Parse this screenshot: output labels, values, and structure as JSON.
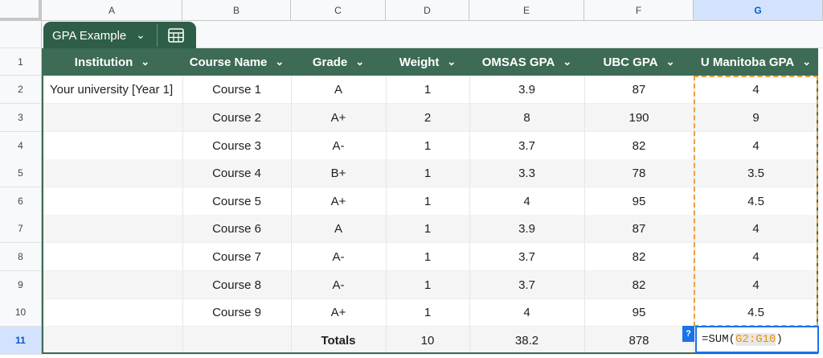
{
  "columns": [
    "A",
    "B",
    "C",
    "D",
    "E",
    "F",
    "G"
  ],
  "selected_column": "G",
  "rows": [
    "1",
    "2",
    "3",
    "4",
    "5",
    "6",
    "7",
    "8",
    "9",
    "10",
    "11"
  ],
  "selected_row": "11",
  "table": {
    "name": "GPA Example",
    "headers": [
      "Institution",
      "Course Name",
      "Grade",
      "Weight",
      "OMSAS GPA",
      "UBC GPA",
      "U Manitoba GPA"
    ],
    "data": [
      [
        "Your university [Year 1]",
        "Course 1",
        "A",
        "1",
        "3.9",
        "87",
        "4"
      ],
      [
        "",
        "Course 2",
        "A+",
        "2",
        "8",
        "190",
        "9"
      ],
      [
        "",
        "Course 3",
        "A-",
        "1",
        "3.7",
        "82",
        "4"
      ],
      [
        "",
        "Course 4",
        "B+",
        "1",
        "3.3",
        "78",
        "3.5"
      ],
      [
        "",
        "Course 5",
        "A+",
        "1",
        "4",
        "95",
        "4.5"
      ],
      [
        "",
        "Course 6",
        "A",
        "1",
        "3.9",
        "87",
        "4"
      ],
      [
        "",
        "Course 7",
        "A-",
        "1",
        "3.7",
        "82",
        "4"
      ],
      [
        "",
        "Course 8",
        "A-",
        "1",
        "3.7",
        "82",
        "4"
      ],
      [
        "",
        "Course 9",
        "A+",
        "1",
        "4",
        "95",
        "4.5"
      ]
    ],
    "totals": [
      "",
      "",
      "Totals",
      "10",
      "38.2",
      "878",
      ""
    ]
  },
  "formula": {
    "prefix": "=SUM(",
    "range": "G2:G10",
    "suffix": ")",
    "help": "?"
  },
  "colors": {
    "header": "#3d6b55",
    "tab": "#2e5e47",
    "selection": "#1a73e8",
    "copy": "#e8a03d"
  }
}
